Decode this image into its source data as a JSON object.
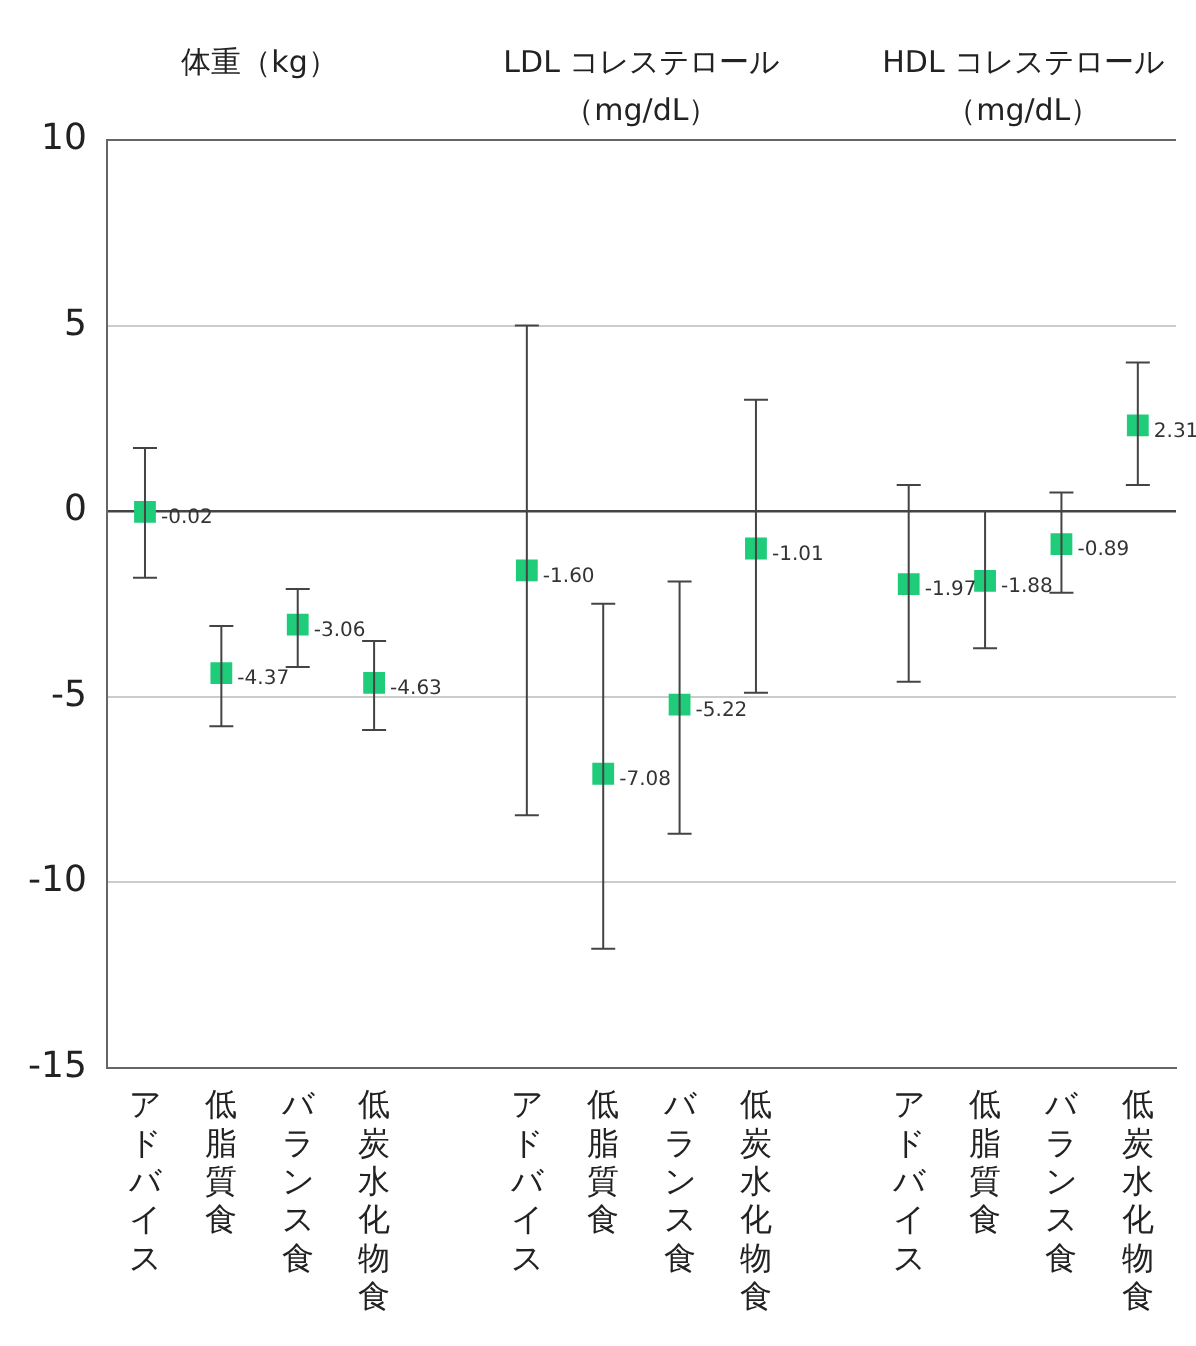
{
  "chart_data": {
    "type": "scatter",
    "categories": [
      "アドバイス",
      "低脂質食",
      "バランス食",
      "低炭水化物食",
      null,
      "アドバイス",
      "低脂質食",
      "バランス食",
      "低炭水化物食",
      null,
      "アドバイス",
      "低脂質食",
      "バランス食",
      "低炭水化物食"
    ],
    "values": [
      -0.02,
      -4.37,
      -3.06,
      -4.63,
      null,
      -1.6,
      -7.08,
      -5.22,
      -1.01,
      null,
      -1.97,
      -1.88,
      -0.89,
      2.31
    ],
    "errors": [
      [
        -1.8,
        1.7
      ],
      [
        -5.8,
        -3.1
      ],
      [
        -4.2,
        -2.1
      ],
      [
        -5.9,
        -3.5
      ],
      null,
      [
        -8.2,
        5.0
      ],
      [
        -11.8,
        -2.5
      ],
      [
        -8.7,
        -1.9
      ],
      [
        -4.9,
        3.0
      ],
      null,
      [
        -4.6,
        0.7
      ],
      [
        -3.7,
        0.0
      ],
      [
        -2.2,
        0.5
      ],
      [
        0.7,
        4.0
      ]
    ],
    "value_labels": [
      "-0.02",
      "-4.37",
      "-3.06",
      "-4.63",
      null,
      "-1.60",
      "-7.08",
      "-5.22",
      "-1.01",
      null,
      "-1.97",
      "-1.88",
      "-0.89",
      "2.31"
    ],
    "color": "#1fcc7a",
    "marker": "square",
    "ylim": [
      -15,
      10
    ],
    "yticks": [
      10,
      5,
      0,
      -5,
      -10,
      -15
    ],
    "grid": "y",
    "legend": false,
    "annotations": [
      "体重（kg）",
      "LDL コレステロール（mg/dL）",
      "HDL コレステロール（mg/dL）"
    ]
  }
}
